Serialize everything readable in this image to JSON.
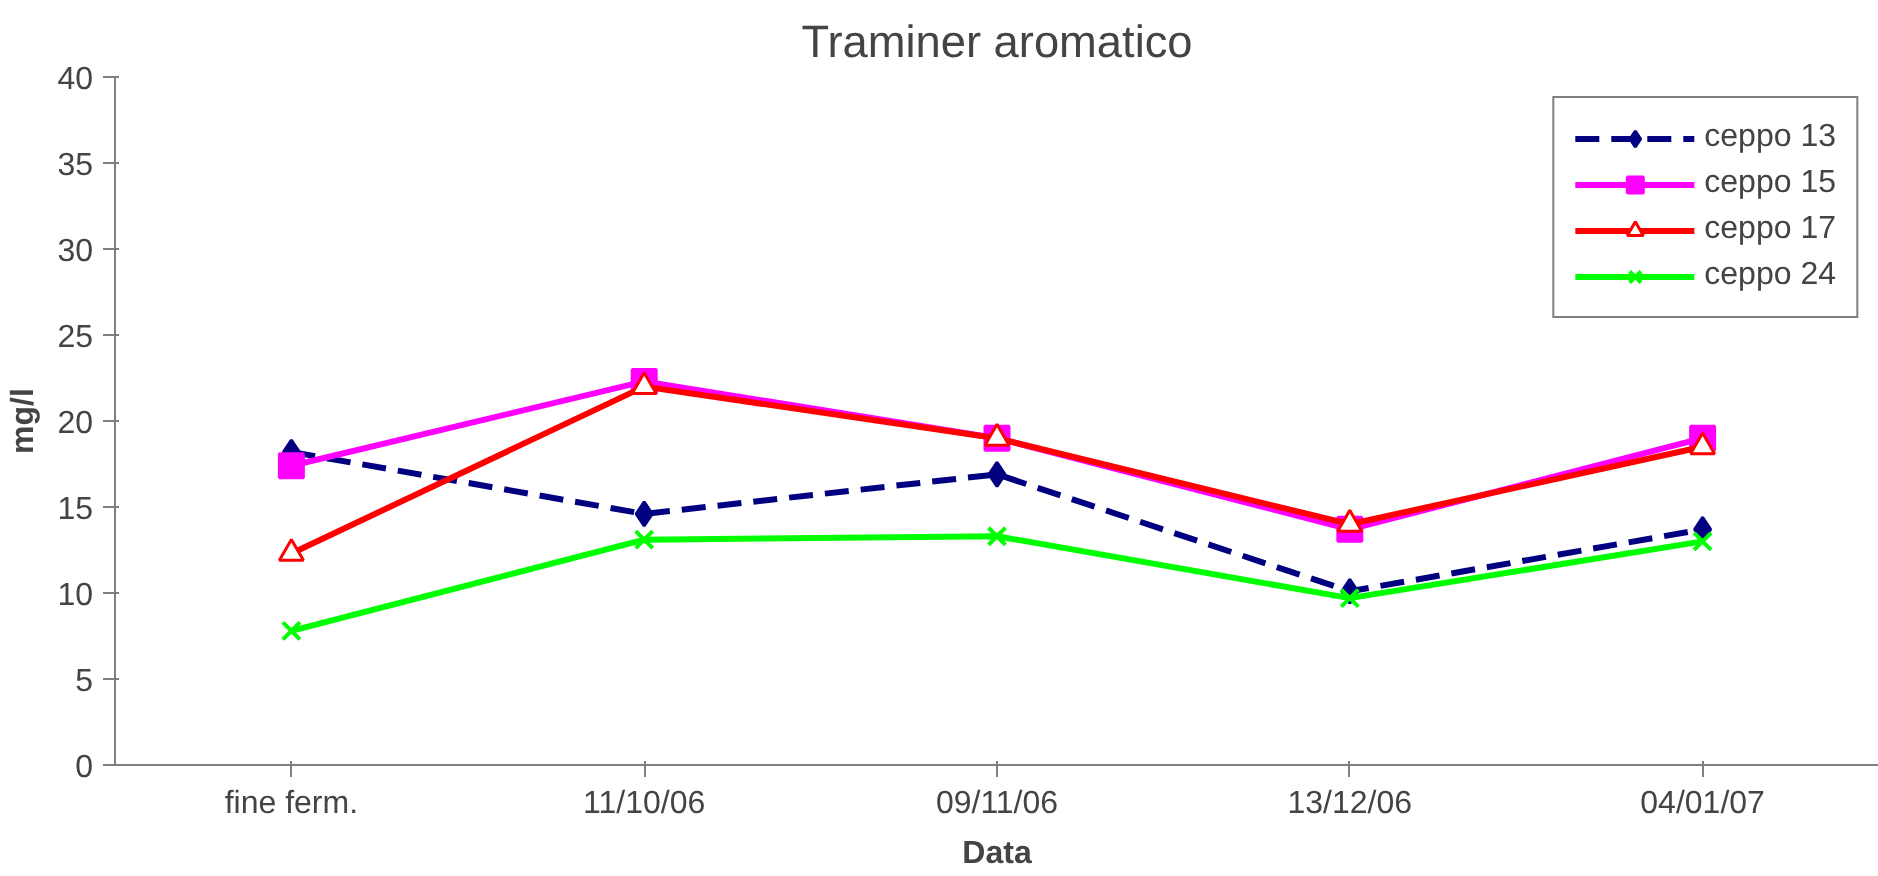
{
  "chart_data": {
    "type": "line",
    "title": "Traminer aromatico",
    "xlabel": "Data",
    "ylabel": "mg/l",
    "categories": [
      "fine ferm.",
      "11/10/06",
      "09/11/06",
      "13/12/06",
      "04/01/07"
    ],
    "ylim": [
      0,
      40
    ],
    "yticks": [
      0,
      5,
      10,
      15,
      20,
      25,
      30,
      35,
      40
    ],
    "grid": false,
    "legend": "top right",
    "series": [
      {
        "name": "ceppo 13",
        "color": "#000080",
        "marker": "diamond",
        "line_style": "dashed",
        "values": [
          18.2,
          14.6,
          16.9,
          10.1,
          13.7
        ]
      },
      {
        "name": "ceppo 15",
        "color": "#ff00ff",
        "marker": "square",
        "line_style": "solid",
        "values": [
          17.4,
          22.3,
          19.0,
          13.7,
          19.0
        ]
      },
      {
        "name": "ceppo 17",
        "color": "#ff0000",
        "marker": "triangle",
        "line_style": "solid",
        "values": [
          12.3,
          22.0,
          19.0,
          14.0,
          18.5
        ]
      },
      {
        "name": "ceppo 24",
        "color": "#00ff00",
        "marker": "cross",
        "line_style": "solid",
        "values": [
          7.8,
          13.1,
          13.3,
          9.7,
          13.0
        ]
      }
    ]
  }
}
